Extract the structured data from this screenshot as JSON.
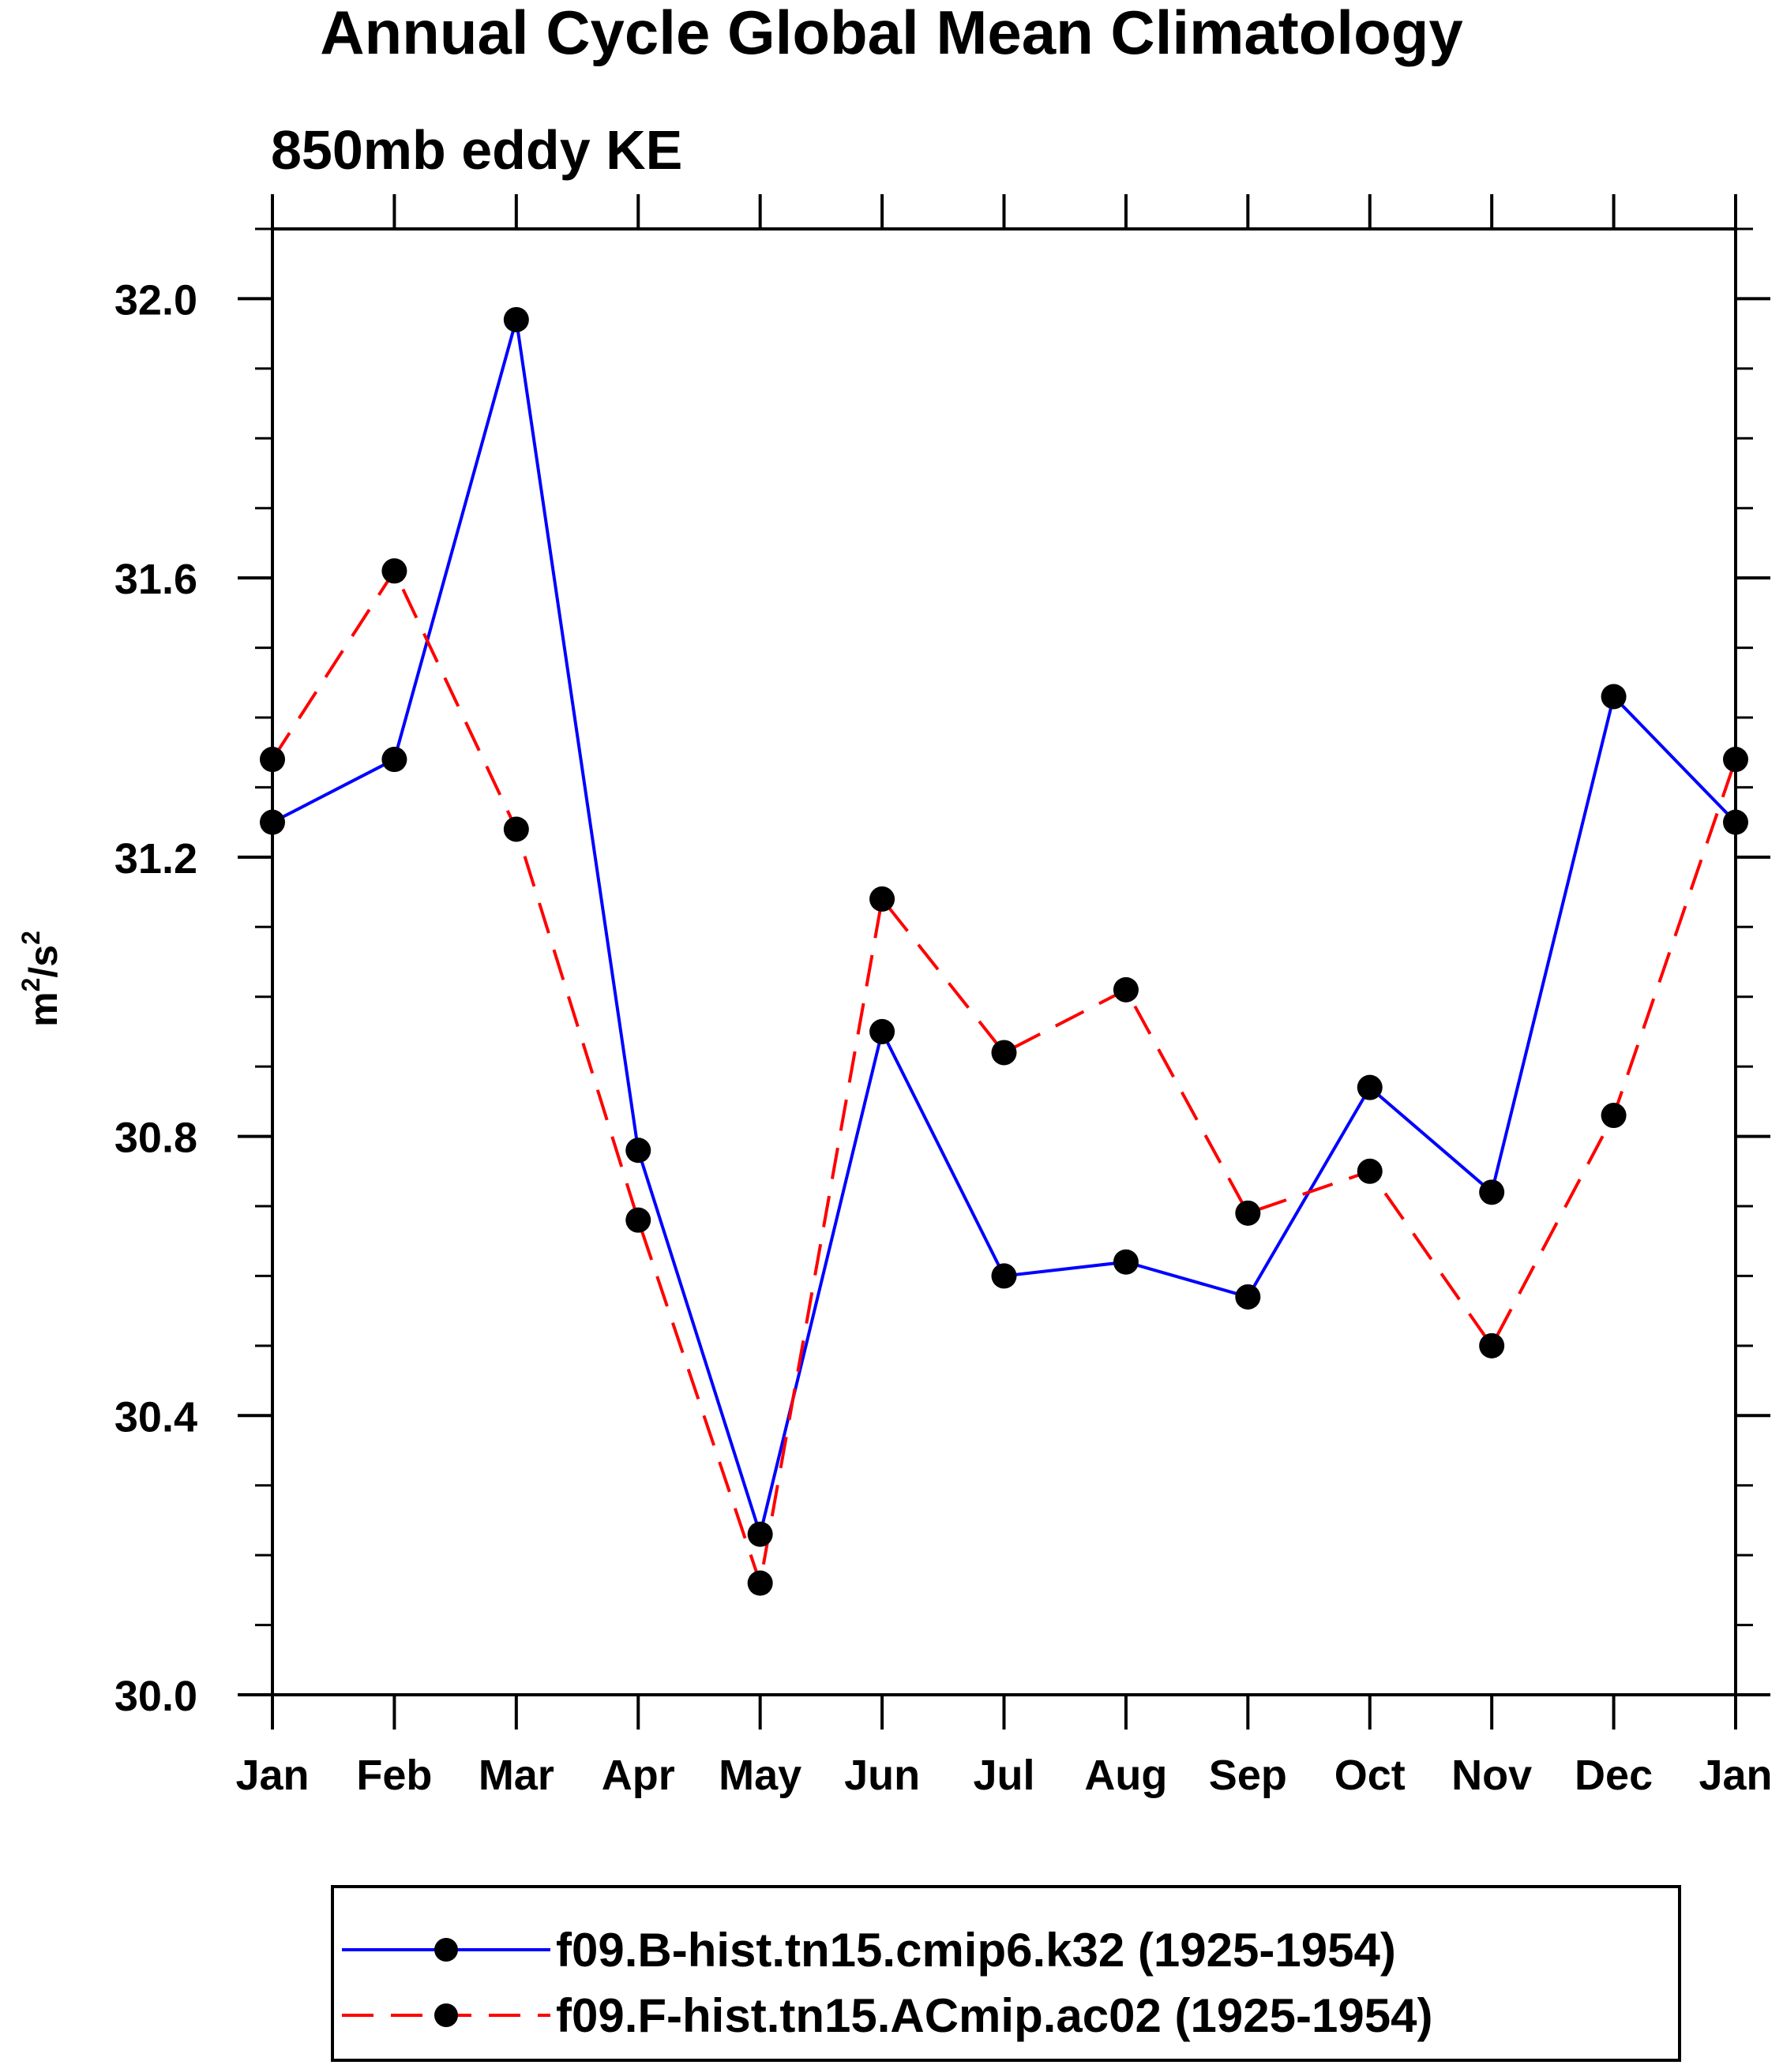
{
  "chart_data": {
    "type": "line",
    "title": "Annual Cycle Global Mean Climatology",
    "subtitle": "850mb eddy KE",
    "ylabel": {
      "base": "m",
      "sup1": "2",
      "mid": "/s",
      "sup2": "2"
    },
    "xlabel": "",
    "categories": [
      "Jan",
      "Feb",
      "Mar",
      "Apr",
      "May",
      "Jun",
      "Jul",
      "Aug",
      "Sep",
      "Oct",
      "Nov",
      "Dec",
      "Jan"
    ],
    "ylim": [
      30.0,
      32.1
    ],
    "yticks": [
      "30.0",
      "30.4",
      "30.8",
      "31.2",
      "31.6",
      "32.0"
    ],
    "grid": false,
    "legend_position": "bottom",
    "series": [
      {
        "name": "f09.B-hist.tn15.cmip6.k32 (1925-1954)",
        "color": "#0000ff",
        "dash": "solid",
        "values": [
          31.25,
          31.34,
          31.97,
          30.78,
          30.23,
          30.95,
          30.6,
          30.62,
          30.57,
          30.87,
          30.72,
          31.43,
          31.25
        ]
      },
      {
        "name": "f09.F-hist.tn15.ACmip.ac02 (1925-1954)",
        "color": "#ff0000",
        "dash": "dashed",
        "values": [
          31.34,
          31.61,
          31.24,
          30.68,
          30.16,
          31.14,
          30.92,
          31.01,
          30.69,
          30.75,
          30.5,
          30.83,
          31.34
        ]
      }
    ],
    "marker_color": "#000000"
  }
}
